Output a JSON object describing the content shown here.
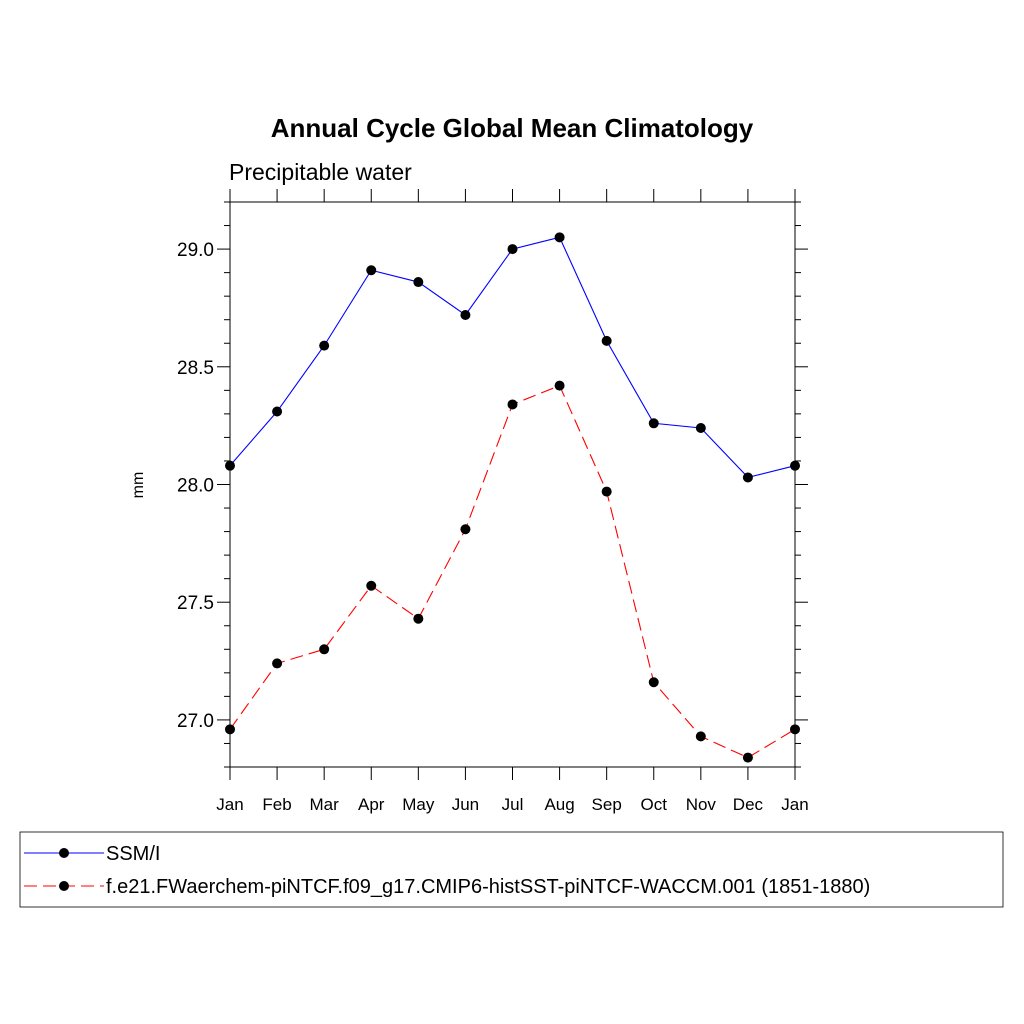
{
  "chart_data": {
    "type": "line",
    "title": "Annual Cycle Global Mean Climatology",
    "subtitle": "Precipitable water",
    "xlabel": "",
    "ylabel": "mm",
    "categories": [
      "Jan",
      "Feb",
      "Mar",
      "Apr",
      "May",
      "Jun",
      "Jul",
      "Aug",
      "Sep",
      "Oct",
      "Nov",
      "Dec",
      "Jan"
    ],
    "ylim": [
      26.8,
      29.2
    ],
    "yticks": [
      27.0,
      27.5,
      28.0,
      28.5,
      29.0
    ],
    "ytick_labels": [
      "27.0",
      "27.5",
      "28.0",
      "28.5",
      "29.0"
    ],
    "legend_position": "bottom",
    "series": [
      {
        "name": "SSM/I",
        "color": "#0000ff",
        "dash": "solid",
        "marker": "filled-circle",
        "values": [
          28.08,
          28.31,
          28.59,
          28.91,
          28.86,
          28.72,
          29.0,
          29.05,
          28.61,
          28.26,
          28.24,
          28.03,
          28.08
        ]
      },
      {
        "name": "f.e21.FWaerchem-piNTCF.f09_g17.CMIP6-histSST-piNTCF-WACCM.001 (1851-1880)",
        "color": "#ff0000",
        "dash": "dashed",
        "marker": "filled-circle",
        "values": [
          26.96,
          27.24,
          27.3,
          27.57,
          27.43,
          27.81,
          28.34,
          28.42,
          27.97,
          27.16,
          26.93,
          26.84,
          26.96
        ]
      }
    ]
  }
}
